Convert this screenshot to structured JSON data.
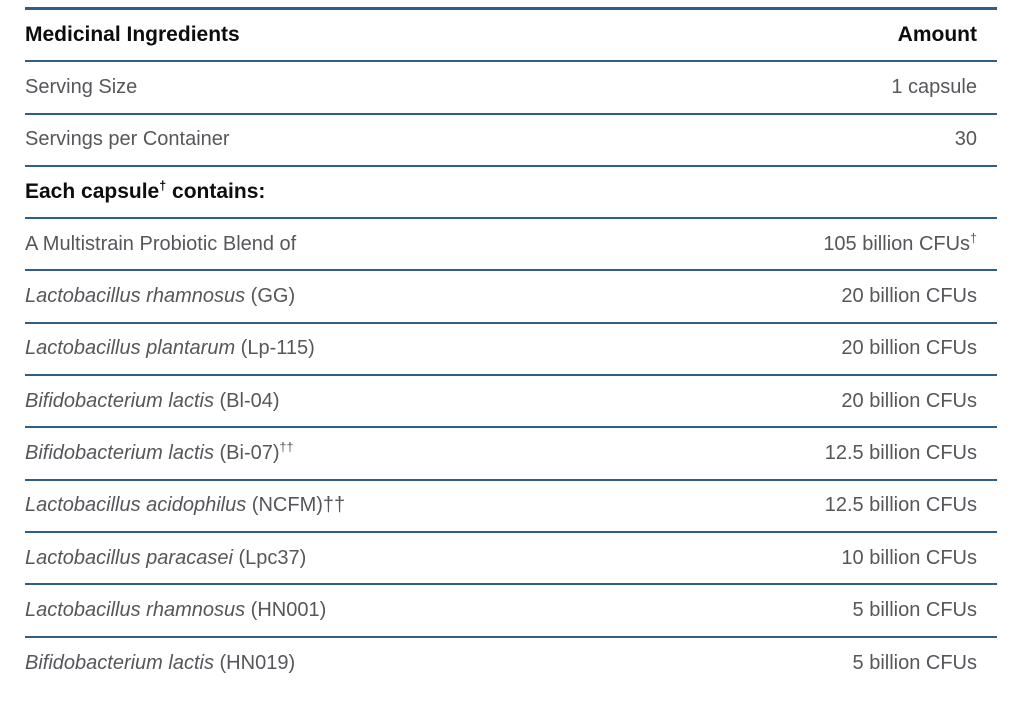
{
  "table": {
    "header": {
      "ingredients_label": "Medicinal Ingredients",
      "amount_label": "Amount"
    },
    "rows": [
      {
        "label": "Serving Size",
        "amount": "1 capsule"
      },
      {
        "label": "Servings per Container",
        "amount": "30"
      },
      {
        "pre": "Each capsule",
        "sup": "†",
        "post": " contains:",
        "amount": ""
      },
      {
        "label": "A Multistrain Probiotic Blend of",
        "amount": "105 billion CFUs",
        "amount_sup": "†"
      },
      {
        "species": "Lactobacillus rhamnosus",
        "strain": " (GG)",
        "sup": "",
        "amount": "20 billion CFUs"
      },
      {
        "species": "Lactobacillus plantarum",
        "strain": " (Lp-115)",
        "sup": "",
        "amount": "20 billion CFUs"
      },
      {
        "species": "Bifidobacterium lactis",
        "strain": " (Bl-04)",
        "sup": "",
        "amount": "20 billion CFUs"
      },
      {
        "species": "Bifidobacterium lactis",
        "strain": " (Bi-07)",
        "sup": "††",
        "amount": "12.5 billion CFUs"
      },
      {
        "species": "Lactobacillus acidophilus",
        "strain": " (NCFM)††",
        "sup": "",
        "amount": "12.5 billion CFUs"
      },
      {
        "species": "Lactobacillus paracasei",
        "strain": " (Lpc37)",
        "sup": "",
        "amount": "10 billion CFUs"
      },
      {
        "species": "Lactobacillus rhamnosus",
        "strain": " (HN001)",
        "sup": "",
        "amount": "5 billion CFUs"
      },
      {
        "species": "Bifidobacterium lactis",
        "strain": " (HN019)",
        "sup": "",
        "amount": "5 billion CFUs"
      }
    ],
    "colors": {
      "rule_blue": "#2e5f88",
      "text_gray": "#56575a",
      "text_black": "#0d0d0d"
    }
  }
}
